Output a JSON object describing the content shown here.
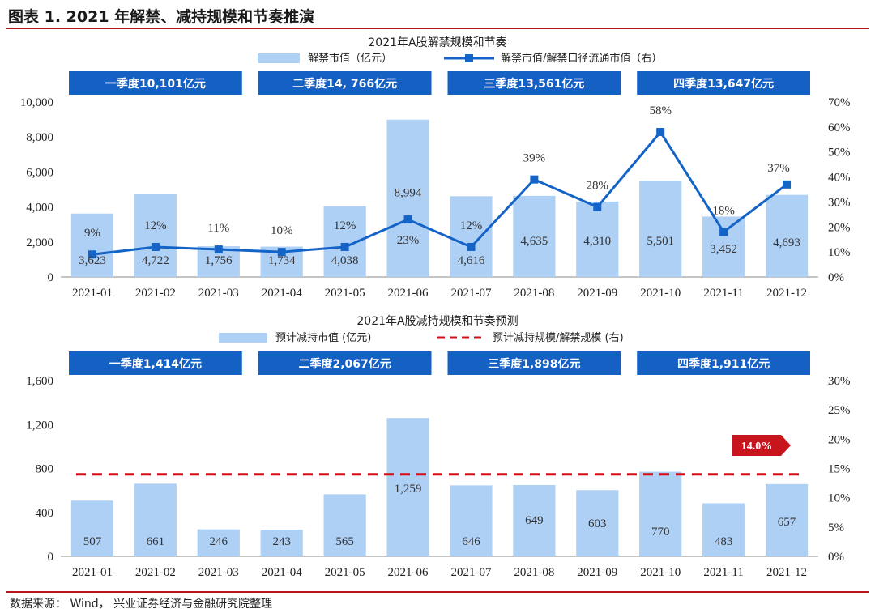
{
  "figure_title": "图表 1. 2021 年解禁、减持规模和节奏推演",
  "source": "数据来源： Wind， 兴业证券经济与金融研究院整理",
  "colors": {
    "bar": "#afd0f5",
    "line": "#1464c8",
    "quarter_box": "#1560c3",
    "dashed": "#d40f1a",
    "badge": "#c8141c",
    "rule": "#b8141c"
  },
  "chart_data": [
    {
      "type": "bar",
      "title": "2021年A股解禁规模和节奏",
      "categories": [
        "2021-01",
        "2021-02",
        "2021-03",
        "2021-04",
        "2021-05",
        "2021-06",
        "2021-07",
        "2021-08",
        "2021-09",
        "2021-10",
        "2021-11",
        "2021-12"
      ],
      "series": [
        {
          "name": "解禁市值（亿元）",
          "type": "bar",
          "axis": "left",
          "values": [
            3623,
            4722,
            1756,
            1734,
            4038,
            8994,
            4616,
            4635,
            4310,
            5501,
            3452,
            4693
          ],
          "labels": [
            "3,623",
            "4,722",
            "1,756",
            "1,734",
            "4,038",
            "8,994",
            "4,616",
            "4,635",
            "4,310",
            "5,501",
            "3,452",
            "4,693"
          ]
        },
        {
          "name": "解禁市值/解禁口径流通市值（右）",
          "type": "line",
          "axis": "right",
          "values": [
            9,
            12,
            11,
            10,
            12,
            23,
            12,
            39,
            28,
            58,
            18,
            37
          ],
          "labels": [
            "9%",
            "12%",
            "11%",
            "10%",
            "12%",
            "23%",
            "12%",
            "39%",
            "28%",
            "58%",
            "18%",
            "37%"
          ]
        }
      ],
      "y_left": {
        "range": [
          0,
          10000
        ],
        "ticks": [
          "0",
          "2,000",
          "4,000",
          "6,000",
          "8,000",
          "10,000"
        ]
      },
      "y_right": {
        "range": [
          0,
          70
        ],
        "ticks": [
          "0%",
          "10%",
          "20%",
          "30%",
          "40%",
          "50%",
          "60%",
          "70%"
        ]
      },
      "quarters": [
        "一季度10,101亿元",
        "二季度14, 766亿元",
        "三季度13,561亿元",
        "四季度13,647亿元"
      ],
      "legend_position": "top-center"
    },
    {
      "type": "bar",
      "title": "2021年A股减持规模和节奏预测",
      "categories": [
        "2021-01",
        "2021-02",
        "2021-03",
        "2021-04",
        "2021-05",
        "2021-06",
        "2021-07",
        "2021-08",
        "2021-09",
        "2021-10",
        "2021-11",
        "2021-12"
      ],
      "series": [
        {
          "name": "预计减持市值 (亿元)",
          "type": "bar",
          "axis": "left",
          "values": [
            507,
            661,
            246,
            243,
            565,
            1259,
            646,
            649,
            603,
            770,
            483,
            657
          ],
          "labels": [
            "507",
            "661",
            "246",
            "243",
            "565",
            "1,259",
            "646",
            "649",
            "603",
            "770",
            "483",
            "657"
          ]
        },
        {
          "name": "预计减持规模/解禁规模 (右)",
          "type": "line",
          "axis": "right",
          "style": "dashed",
          "values": [
            14,
            14,
            14,
            14,
            14,
            14,
            14,
            14,
            14,
            14,
            14,
            14
          ]
        }
      ],
      "y_left": {
        "range": [
          0,
          1600
        ],
        "ticks": [
          "0",
          "400",
          "800",
          "1,200",
          "1,600"
        ]
      },
      "y_right": {
        "range": [
          0,
          30
        ],
        "ticks": [
          "0%",
          "5%",
          "10%",
          "15%",
          "20%",
          "25%",
          "30%"
        ]
      },
      "quarters": [
        "一季度1,414亿元",
        "二季度2,067亿元",
        "三季度1,898亿元",
        "四季度1,911亿元"
      ],
      "badge": "14.0%",
      "legend_position": "top-center"
    }
  ]
}
